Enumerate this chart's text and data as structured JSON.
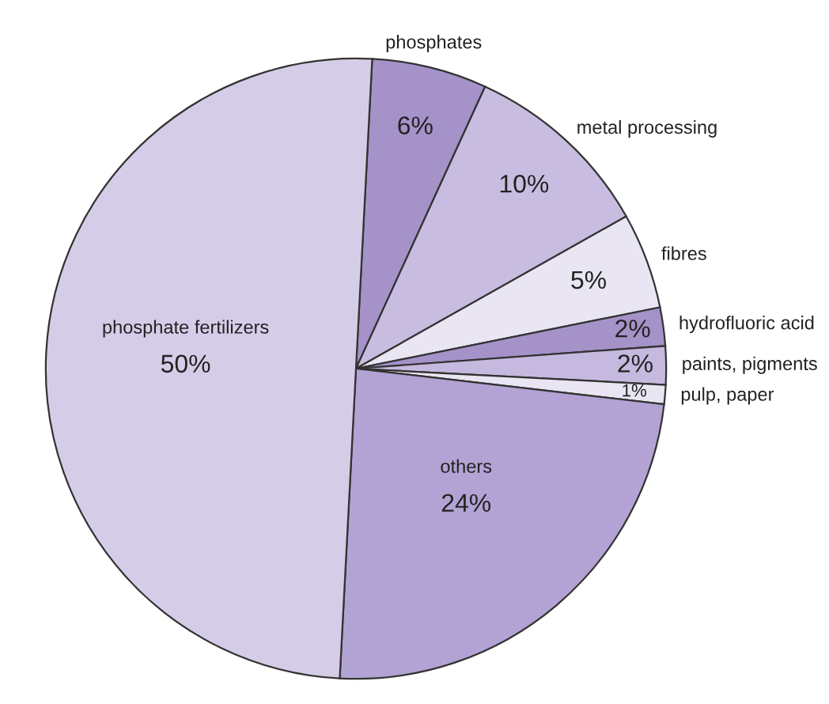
{
  "chart_data": {
    "type": "pie",
    "categories": [
      "phosphates",
      "metal processing",
      "fibres",
      "hydrofluoric acid",
      "paints, pigments",
      "pulp, paper",
      "others",
      "phosphate fertilizers"
    ],
    "values": [
      6,
      10,
      5,
      2,
      2,
      1,
      24,
      50
    ],
    "value_labels": [
      "6%",
      "10%",
      "5%",
      "2%",
      "2%",
      "1%",
      "24%",
      "50%"
    ],
    "colors": [
      "#a592c9",
      "#c8bde0",
      "#e9e5f3",
      "#a592c9",
      "#c6b9df",
      "#e9e5f3",
      "#b3a3d4",
      "#d5cde8"
    ]
  }
}
